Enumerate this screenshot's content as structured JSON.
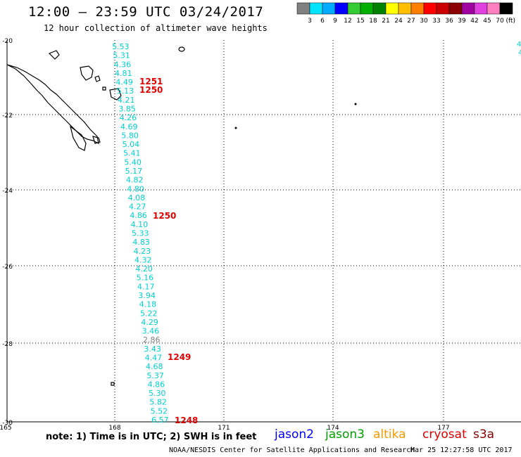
{
  "header": {
    "title": "12:00 — 23:59 UTC 03/24/2017",
    "subtitle": "12 hour collection of altimeter wave heights"
  },
  "colorbar": {
    "colors": [
      "#808080",
      "#00e5ff",
      "#00aaff",
      "#0000ff",
      "#33cc33",
      "#00b000",
      "#008000",
      "#ffff00",
      "#ffbf00",
      "#ff8000",
      "#ff0000",
      "#cc0000",
      "#8b0000",
      "#a000a0",
      "#e040e0",
      "#ff80c0",
      "#000000"
    ],
    "labels": [
      "3",
      "6",
      "9",
      "12",
      "15",
      "18",
      "21",
      "24",
      "27",
      "30",
      "33",
      "36",
      "39",
      "42",
      "45",
      "70"
    ],
    "unit": "(ft)"
  },
  "axes": {
    "lat_labels": [
      "-20",
      "-22",
      "-24",
      "-26",
      "-28",
      "-30"
    ],
    "lon_labels": [
      "165",
      "168",
      "171",
      "174",
      "177"
    ]
  },
  "wave_heights": [
    {
      "value": "5.53",
      "color": "#00d0d0"
    },
    {
      "value": "5.31",
      "color": "#00d0d0"
    },
    {
      "value": "4.36",
      "color": "#00d0d0"
    },
    {
      "value": "4.81",
      "color": "#00d0d0"
    },
    {
      "value": "4.49",
      "color": "#00d0d0"
    },
    {
      "value": "5.13",
      "color": "#00d0d0"
    },
    {
      "value": "4.21",
      "color": "#00d0d0"
    },
    {
      "value": "3.85",
      "color": "#00d0d0"
    },
    {
      "value": "4.26",
      "color": "#00d0d0"
    },
    {
      "value": "4.69",
      "color": "#00d0d0"
    },
    {
      "value": "5.80",
      "color": "#00d0d0"
    },
    {
      "value": "5.04",
      "color": "#00d0d0"
    },
    {
      "value": "5.41",
      "color": "#00d0d0"
    },
    {
      "value": "5.40",
      "color": "#00d0d0"
    },
    {
      "value": "5.17",
      "color": "#00d0d0"
    },
    {
      "value": "4.82",
      "color": "#00d0d0"
    },
    {
      "value": "4.80",
      "color": "#00d0d0"
    },
    {
      "value": "4.08",
      "color": "#00d0d0"
    },
    {
      "value": "4.27",
      "color": "#00d0d0"
    },
    {
      "value": "4.86",
      "color": "#00d0d0"
    },
    {
      "value": "4.10",
      "color": "#00d0d0"
    },
    {
      "value": "5.33",
      "color": "#00d0d0"
    },
    {
      "value": "4.83",
      "color": "#00d0d0"
    },
    {
      "value": "4.23",
      "color": "#00d0d0"
    },
    {
      "value": "4.32",
      "color": "#00d0d0"
    },
    {
      "value": "4.20",
      "color": "#00d0d0"
    },
    {
      "value": "5.16",
      "color": "#00d0d0"
    },
    {
      "value": "4.17",
      "color": "#00d0d0"
    },
    {
      "value": "3.94",
      "color": "#00d0d0"
    },
    {
      "value": "4.18",
      "color": "#00d0d0"
    },
    {
      "value": "5.22",
      "color": "#00d0d0"
    },
    {
      "value": "4.29",
      "color": "#00d0d0"
    },
    {
      "value": "3.46",
      "color": "#00d0d0"
    },
    {
      "value": "2.86",
      "color": "#808080"
    },
    {
      "value": "3.43",
      "color": "#00d0d0"
    },
    {
      "value": "4.47",
      "color": "#00d0d0"
    },
    {
      "value": "4.68",
      "color": "#00d0d0"
    },
    {
      "value": "5.37",
      "color": "#00d0d0"
    },
    {
      "value": "4.86",
      "color": "#00d0d0"
    },
    {
      "value": "5.30",
      "color": "#00d0d0"
    },
    {
      "value": "5.82",
      "color": "#00d0d0"
    },
    {
      "value": "5.52",
      "color": "#00d0d0"
    },
    {
      "value": "6.57",
      "color": "#00d0d0"
    }
  ],
  "time_labels": [
    "1251",
    "1250",
    "1250",
    "1249",
    "1248"
  ],
  "edge_values": [
    "4",
    "4"
  ],
  "note": "note: 1) Time is in UTC; 2) SWH is in feet",
  "satellites": [
    {
      "name": "jason2",
      "color": "#0000ff"
    },
    {
      "name": "jason3",
      "color": "#00a000"
    },
    {
      "name": "altika",
      "color": "#ff9900"
    },
    {
      "name": "cryosat",
      "color": "#e00000"
    },
    {
      "name": "s3a",
      "color": "#880000"
    }
  ],
  "footer": {
    "credit": "NOAA/NESDIS Center for Satellite Applications and Research",
    "timestamp": "Mar 25 12:27:58 UTC 2017"
  }
}
